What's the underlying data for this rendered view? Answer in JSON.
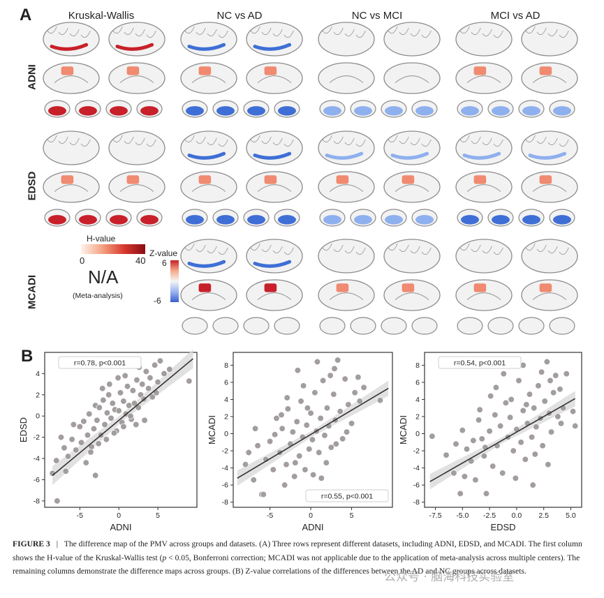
{
  "panel_a": {
    "letter": "A",
    "columns": [
      "Kruskal-Wallis",
      "NC vs AD",
      "NC vs MCI",
      "MCI vs AD"
    ],
    "rows": [
      "ADNI",
      "EDSD",
      "MCADI"
    ],
    "hvalue_legend": {
      "title": "H-value",
      "min": "0",
      "max": "40"
    },
    "na_text": "N/A",
    "na_sub": "(Meta-analysis)",
    "zvalue_legend": {
      "title": "Z-value",
      "max": "6",
      "min": "-6"
    },
    "colors": {
      "red": "#c8202a",
      "salmon": "#f08a70",
      "blue": "#3f6fd6",
      "lightblue": "#8fb0ee",
      "brain": "#f2f2f2"
    }
  },
  "panel_b": {
    "letter": "B"
  },
  "chart_data": [
    {
      "type": "scatter",
      "xlabel": "ADNI",
      "ylabel": "EDSD",
      "annotation": "r=0.78, p<0.001",
      "xlim": [
        -9.5,
        10
      ],
      "ylim": [
        -8.6,
        6
      ],
      "xticks": [
        -5,
        0,
        5
      ],
      "yticks": [
        -8,
        -6,
        -4,
        -2,
        0,
        2,
        4
      ],
      "fit": {
        "x": [
          -8.5,
          9.5
        ],
        "y": [
          -5.6,
          5.4
        ]
      },
      "points": [
        [
          -8.5,
          -5.4
        ],
        [
          -7.9,
          -8.0
        ],
        [
          -8.0,
          -4.2
        ],
        [
          -7.0,
          -3.0
        ],
        [
          -6.5,
          -3.8
        ],
        [
          -6.0,
          -2.2
        ],
        [
          -6.8,
          -5.2
        ],
        [
          -5.5,
          -3.2
        ],
        [
          -5.0,
          -1.0
        ],
        [
          -4.8,
          -2.5
        ],
        [
          -4.5,
          -0.5
        ],
        [
          -4.0,
          -1.8
        ],
        [
          -3.8,
          0.2
        ],
        [
          -3.5,
          -2.9
        ],
        [
          -3.2,
          -1.2
        ],
        [
          -3.0,
          1.0
        ],
        [
          -2.8,
          -0.4
        ],
        [
          -2.5,
          0.8
        ],
        [
          -2.3,
          -1.8
        ],
        [
          -2.0,
          1.5
        ],
        [
          -1.8,
          -0.8
        ],
        [
          -1.5,
          0.3
        ],
        [
          -1.3,
          2.0
        ],
        [
          -1.0,
          -0.2
        ],
        [
          -0.8,
          1.2
        ],
        [
          -0.5,
          0.6
        ],
        [
          -0.3,
          -1.4
        ],
        [
          0.0,
          0.5
        ],
        [
          0.2,
          2.2
        ],
        [
          0.4,
          -0.6
        ],
        [
          0.6,
          1.4
        ],
        [
          0.9,
          0.2
        ],
        [
          1.1,
          2.8
        ],
        [
          1.3,
          1.0
        ],
        [
          1.6,
          -0.3
        ],
        [
          1.8,
          2.4
        ],
        [
          2.0,
          1.2
        ],
        [
          2.3,
          3.4
        ],
        [
          2.5,
          0.8
        ],
        [
          2.8,
          2.0
        ],
        [
          3.0,
          3.0
        ],
        [
          3.2,
          1.6
        ],
        [
          3.5,
          4.2
        ],
        [
          3.8,
          2.6
        ],
        [
          4.0,
          3.6
        ],
        [
          4.3,
          1.8
        ],
        [
          4.6,
          4.8
        ],
        [
          5.0,
          3.2
        ],
        [
          5.3,
          5.2
        ],
        [
          5.8,
          4.0
        ],
        [
          6.5,
          4.4
        ],
        [
          9.0,
          3.3
        ],
        [
          -4.2,
          -4.4
        ],
        [
          -3.6,
          -3.4
        ],
        [
          -2.6,
          -2.6
        ],
        [
          -1.6,
          -2.2
        ],
        [
          -0.6,
          -1.6
        ],
        [
          0.6,
          -1.0
        ],
        [
          1.5,
          0.0
        ],
        [
          2.2,
          -0.8
        ],
        [
          -5.8,
          -0.8
        ],
        [
          -2.1,
          2.6
        ],
        [
          -1.2,
          3.0
        ],
        [
          0.8,
          3.8
        ],
        [
          3.3,
          -0.4
        ],
        [
          -7.4,
          -2.0
        ],
        [
          -3.0,
          -5.6
        ],
        [
          4.8,
          2.2
        ],
        [
          -0.1,
          3.6
        ],
        [
          2.6,
          4.6
        ]
      ]
    },
    {
      "type": "scatter",
      "xlabel": "ADNI",
      "ylabel": "MCADI",
      "annotation": "r=0.55, p<0.001",
      "xlim": [
        -9.5,
        10
      ],
      "ylim": [
        -8.6,
        9.5
      ],
      "xticks": [
        -5,
        0,
        5
      ],
      "yticks": [
        -8,
        -6,
        -4,
        -2,
        0,
        2,
        4,
        6,
        8
      ],
      "fit": {
        "x": [
          -9.0,
          9.5
        ],
        "y": [
          -5.2,
          5.3
        ]
      },
      "points": [
        [
          -8.0,
          -3.6
        ],
        [
          -7.0,
          -5.4
        ],
        [
          -6.5,
          -1.4
        ],
        [
          -6.0,
          -7.1
        ],
        [
          -5.5,
          -3.0
        ],
        [
          -5.0,
          -0.9
        ],
        [
          -4.6,
          -4.2
        ],
        [
          -4.2,
          1.8
        ],
        [
          -3.8,
          -2.2
        ],
        [
          -3.5,
          0.6
        ],
        [
          -3.0,
          -3.6
        ],
        [
          -2.8,
          2.9
        ],
        [
          -2.5,
          -1.2
        ],
        [
          -2.2,
          0.2
        ],
        [
          -2.0,
          -5.0
        ],
        [
          -1.7,
          1.4
        ],
        [
          -1.4,
          -2.6
        ],
        [
          -1.2,
          3.8
        ],
        [
          -1.0,
          -0.4
        ],
        [
          -0.7,
          -4.2
        ],
        [
          -0.5,
          1.0
        ],
        [
          -0.2,
          -1.8
        ],
        [
          0.0,
          2.4
        ],
        [
          0.2,
          -0.7
        ],
        [
          0.5,
          4.8
        ],
        [
          0.7,
          0.3
        ],
        [
          1.0,
          -2.2
        ],
        [
          1.2,
          1.8
        ],
        [
          1.5,
          6.2
        ],
        [
          1.7,
          -0.2
        ],
        [
          2.0,
          3.0
        ],
        [
          2.2,
          0.9
        ],
        [
          2.5,
          -1.6
        ],
        [
          2.8,
          4.6
        ],
        [
          3.0,
          1.6
        ],
        [
          3.3,
          8.6
        ],
        [
          3.6,
          2.6
        ],
        [
          3.9,
          -0.6
        ],
        [
          4.2,
          6.4
        ],
        [
          4.6,
          3.4
        ],
        [
          5.0,
          1.2
        ],
        [
          5.4,
          4.8
        ],
        [
          6.0,
          3.8
        ],
        [
          6.5,
          5.4
        ],
        [
          8.5,
          3.9
        ],
        [
          -5.8,
          -7.1
        ],
        [
          -3.2,
          -6.0
        ],
        [
          -1.9,
          -3.4
        ],
        [
          0.8,
          8.4
        ],
        [
          2.4,
          6.8
        ],
        [
          -4.4,
          -0.1
        ],
        [
          -2.9,
          4.2
        ],
        [
          -0.9,
          5.6
        ],
        [
          1.9,
          -3.4
        ],
        [
          3.1,
          -1.2
        ],
        [
          4.4,
          0.2
        ],
        [
          -6.8,
          0.6
        ],
        [
          -7.6,
          -2.2
        ],
        [
          0.3,
          -4.8
        ],
        [
          -1.6,
          7.4
        ],
        [
          2.9,
          7.6
        ],
        [
          5.8,
          6.6
        ],
        [
          -0.4,
          3.0
        ],
        [
          1.3,
          -5.2
        ],
        [
          -3.6,
          2.2
        ]
      ]
    },
    {
      "type": "scatter",
      "xlabel": "EDSD",
      "ylabel": "MCADI",
      "annotation": "r=0.54, p<0.001",
      "xlim": [
        -8.5,
        6.0
      ],
      "ylim": [
        -8.6,
        9.5
      ],
      "xticks": [
        -7.5,
        -5.0,
        -2.5,
        0.0,
        2.5,
        5.0
      ],
      "yticks": [
        -8,
        -6,
        -4,
        -2,
        0,
        2,
        4,
        6,
        8
      ],
      "fit": {
        "x": [
          -8.0,
          5.4
        ],
        "y": [
          -5.6,
          4.1
        ]
      },
      "points": [
        [
          -7.8,
          -0.3
        ],
        [
          -6.5,
          -2.5
        ],
        [
          -5.8,
          -4.6
        ],
        [
          -5.2,
          -7.0
        ],
        [
          -5.0,
          0.4
        ],
        [
          -4.6,
          -1.8
        ],
        [
          -4.2,
          -3.2
        ],
        [
          -3.8,
          -5.4
        ],
        [
          -3.5,
          1.6
        ],
        [
          -3.2,
          -0.6
        ],
        [
          -3.0,
          -2.6
        ],
        [
          -2.8,
          -7.0
        ],
        [
          -2.5,
          0.3
        ],
        [
          -2.2,
          -3.8
        ],
        [
          -2.0,
          2.2
        ],
        [
          -1.8,
          -1.4
        ],
        [
          -1.5,
          0.9
        ],
        [
          -1.3,
          -4.6
        ],
        [
          -1.0,
          3.6
        ],
        [
          -0.8,
          -0.4
        ],
        [
          -0.6,
          1.9
        ],
        [
          -0.3,
          -2.0
        ],
        [
          0.0,
          0.5
        ],
        [
          0.2,
          6.2
        ],
        [
          0.4,
          -1.0
        ],
        [
          0.6,
          2.7
        ],
        [
          0.8,
          -3.0
        ],
        [
          1.0,
          1.2
        ],
        [
          1.2,
          4.6
        ],
        [
          1.4,
          -0.4
        ],
        [
          1.6,
          3.0
        ],
        [
          1.8,
          0.8
        ],
        [
          2.0,
          5.6
        ],
        [
          2.2,
          1.8
        ],
        [
          2.4,
          -1.4
        ],
        [
          2.6,
          3.8
        ],
        [
          2.8,
          8.4
        ],
        [
          3.0,
          2.4
        ],
        [
          3.2,
          0.2
        ],
        [
          3.4,
          4.8
        ],
        [
          3.6,
          6.8
        ],
        [
          3.8,
          2.0
        ],
        [
          4.0,
          5.2
        ],
        [
          4.3,
          3.0
        ],
        [
          4.6,
          7.0
        ],
        [
          5.2,
          2.6
        ],
        [
          5.4,
          0.9
        ],
        [
          -1.2,
          7.0
        ],
        [
          0.6,
          8.0
        ],
        [
          -2.4,
          4.4
        ],
        [
          -4.0,
          -0.8
        ],
        [
          -0.1,
          -5.2
        ],
        [
          1.7,
          -2.4
        ],
        [
          2.9,
          -3.6
        ],
        [
          -3.4,
          2.8
        ],
        [
          -5.6,
          -1.2
        ],
        [
          -1.9,
          5.4
        ],
        [
          0.9,
          3.4
        ],
        [
          3.1,
          6.2
        ],
        [
          -2.9,
          -1.6
        ],
        [
          1.5,
          -6.0
        ],
        [
          4.1,
          1.2
        ],
        [
          -0.5,
          4.0
        ],
        [
          2.3,
          7.2
        ],
        [
          -4.8,
          -5.0
        ]
      ]
    }
  ],
  "caption": {
    "label": "FIGURE 3",
    "sep": "|",
    "text1": "The difference map of the PMV across groups and datasets. (A) Three rows represent different datasets, including ADNI, EDSD, and MCADI. The first column shows the H-value of the Kruskal-Wallis test (",
    "italic_p": "p",
    "text2": " < 0.05, Bonferroni correction; MCADI was not applicable due to the application of meta-analysis across multiple centers). The remaining columns demonstrate the difference maps across groups. (B) Z-value correlations of the differences between the AD and NC groups across datasets."
  },
  "watermark": "公众号 · 脑海科技实验室"
}
